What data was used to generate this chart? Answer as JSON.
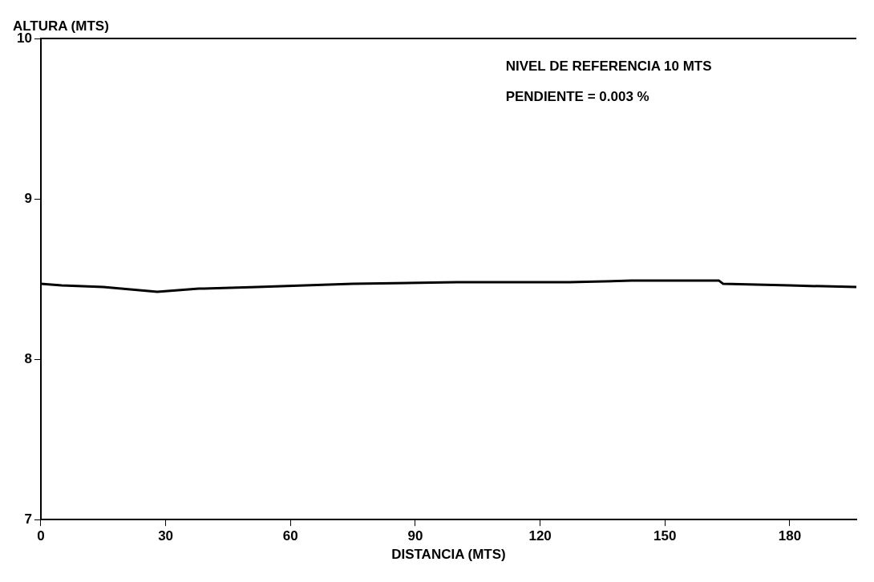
{
  "chart_data": {
    "type": "line",
    "xlabel": "DISTANCIA (MTS)",
    "ylabel": "ALTURA (MTS)",
    "annotations": [
      "NIVEL DE REFERENCIA 10 MTS",
      "PENDIENTE = 0.003 %"
    ],
    "x": [
      0,
      5,
      15,
      28,
      38,
      52,
      75,
      100,
      127,
      142,
      163,
      164,
      180,
      196
    ],
    "series": [
      {
        "color": "#000000",
        "values": [
          8.47,
          8.46,
          8.45,
          8.42,
          8.44,
          8.45,
          8.47,
          8.48,
          8.48,
          8.49,
          8.49,
          8.47,
          8.46,
          8.45
        ]
      }
    ],
    "xlim": [
      0,
      196
    ],
    "xticks": [
      0,
      30,
      60,
      90,
      120,
      150,
      180
    ],
    "ylim": [
      7,
      10
    ],
    "yticks": [
      7,
      8,
      9,
      10
    ],
    "grid": false,
    "legend": false,
    "marker": "none",
    "line_style": "solid"
  }
}
